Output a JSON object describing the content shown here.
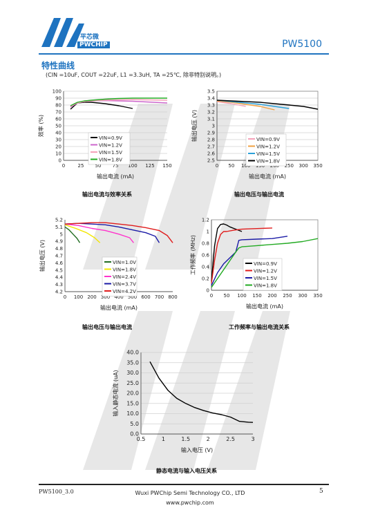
{
  "header": {
    "brand_cn": "平芯微",
    "brand_en": "PWCHIP",
    "part_number": "PW5100"
  },
  "section": {
    "title": "特性曲线",
    "conditions": "(CIN =10uF,  COUT =22uF,  L1 =3.3uH,  TA =25℃,  除非特别说明。)"
  },
  "colors": {
    "brand": "#1e73c0",
    "black": "#000000",
    "violet": "#cc66cc",
    "pink": "#f5a0b8",
    "green": "#22aa22",
    "orange": "#f0a040",
    "cyan": "#2aa0d8",
    "darkgreen": "#1f6b1f",
    "yellow": "#f2e600",
    "magenta": "#ff33cc",
    "navy": "#1a1aa6",
    "red": "#e01b1b"
  },
  "chart_data": [
    {
      "id": "eff",
      "type": "line",
      "title": "",
      "caption": "输出电流与效率关系",
      "xlabel": "输出电流 (mA)",
      "ylabel": "效率 (%)",
      "xlim": [
        0,
        150
      ],
      "ylim": [
        0,
        100
      ],
      "xticks": [
        0,
        25,
        50,
        75,
        100,
        125,
        150
      ],
      "yticks": [
        0,
        10,
        20,
        30,
        40,
        50,
        60,
        70,
        80,
        90,
        100
      ],
      "grid": "horizontal",
      "legend": "inside-lower-right",
      "series": [
        {
          "name": "VIN=0.9V",
          "color": "black",
          "x": [
            10,
            20,
            30,
            40,
            50,
            60,
            70,
            80,
            90,
            100
          ],
          "y": [
            74,
            83,
            84,
            84,
            83,
            82,
            80.5,
            79,
            77,
            75
          ]
        },
        {
          "name": "VIN=1.2V",
          "color": "violet",
          "x": [
            10,
            20,
            30,
            40,
            60,
            80,
            100,
            120,
            150
          ],
          "y": [
            77,
            83,
            85,
            86,
            86.5,
            86,
            85.5,
            84.5,
            83
          ]
        },
        {
          "name": "VIN=1.5V",
          "color": "pink",
          "x": [
            10,
            20,
            30,
            40,
            60,
            80,
            100,
            120,
            150
          ],
          "y": [
            78,
            83,
            85,
            86,
            87,
            87.5,
            88,
            87.5,
            87
          ]
        },
        {
          "name": "VIN=1.8V",
          "color": "green",
          "x": [
            10,
            20,
            30,
            40,
            60,
            80,
            100,
            120,
            150
          ],
          "y": [
            79,
            84,
            86,
            87,
            88.5,
            89.5,
            90,
            90,
            90
          ]
        }
      ]
    },
    {
      "id": "vout1",
      "type": "line",
      "title": "",
      "caption": "输出电压与输出电流",
      "xlabel": "输出电流 (mA)",
      "ylabel": "输出电压 (V)",
      "xlim": [
        0,
        350
      ],
      "ylim": [
        2.5,
        3.5
      ],
      "xticks": [
        0,
        50,
        100,
        150,
        200,
        250,
        300,
        350
      ],
      "yticks": [
        2.5,
        2.6,
        2.7,
        2.8,
        2.9,
        3,
        3.1,
        3.2,
        3.3,
        3.4,
        3.5
      ],
      "grid": "horizontal",
      "legend": "inside-lower-right",
      "series": [
        {
          "name": "VIN=0.9V",
          "color": "pink",
          "x": [
            0,
            50,
            100
          ],
          "y": [
            3.35,
            3.32,
            3.28
          ]
        },
        {
          "name": "VIN=1.2V",
          "color": "orange",
          "x": [
            0,
            50,
            100,
            150,
            200
          ],
          "y": [
            3.36,
            3.34,
            3.31,
            3.28,
            3.23
          ]
        },
        {
          "name": "VIN=1.5V",
          "color": "cyan",
          "x": [
            0,
            50,
            100,
            150,
            200,
            250
          ],
          "y": [
            3.37,
            3.35,
            3.33,
            3.31,
            3.28,
            3.25
          ]
        },
        {
          "name": "VIN=1.8V",
          "color": "black",
          "x": [
            0,
            50,
            100,
            150,
            200,
            250,
            300,
            350
          ],
          "y": [
            3.37,
            3.36,
            3.35,
            3.34,
            3.32,
            3.3,
            3.28,
            3.24
          ]
        }
      ]
    },
    {
      "id": "vout2",
      "type": "line",
      "title": "",
      "caption": "输出电压与输出电流",
      "xlabel": "输出电流 (mA)",
      "ylabel": "输出电压 (V)",
      "xlim": [
        0,
        800
      ],
      "ylim": [
        4.2,
        5.2
      ],
      "xticks": [
        0,
        100,
        200,
        300,
        400,
        500,
        600,
        700,
        800
      ],
      "yticks": [
        4.2,
        4.3,
        4.4,
        4.5,
        4.6,
        4.7,
        4.8,
        4.9,
        5,
        5.1,
        5.2
      ],
      "grid": "none",
      "legend": "inside-lower-right",
      "series": [
        {
          "name": "VIN=1.0V",
          "color": "darkgreen",
          "x": [
            0,
            30,
            60,
            90,
            110
          ],
          "y": [
            5.1,
            5.06,
            5.0,
            4.94,
            4.88
          ]
        },
        {
          "name": "VIN=1.8V",
          "color": "yellow",
          "x": [
            0,
            80,
            160,
            220,
            260
          ],
          "y": [
            5.13,
            5.08,
            5.02,
            4.95,
            4.88
          ]
        },
        {
          "name": "VIN=2.4V",
          "color": "magenta",
          "x": [
            0,
            100,
            200,
            300,
            400,
            480,
            510
          ],
          "y": [
            5.14,
            5.12,
            5.08,
            5.05,
            5.0,
            4.95,
            4.88
          ]
        },
        {
          "name": "VIN=3.7V",
          "color": "navy",
          "x": [
            0,
            100,
            200,
            300,
            400,
            500,
            600,
            670,
            700
          ],
          "y": [
            5.14,
            5.15,
            5.14,
            5.13,
            5.1,
            5.06,
            5.02,
            4.97,
            4.88
          ]
        },
        {
          "name": "VIN=4.2V",
          "color": "red",
          "x": [
            0,
            100,
            200,
            300,
            400,
            500,
            600,
            700,
            760,
            800
          ],
          "y": [
            5.14,
            5.15,
            5.16,
            5.16,
            5.14,
            5.12,
            5.09,
            5.05,
            4.98,
            4.88
          ]
        }
      ]
    },
    {
      "id": "freq",
      "type": "line",
      "title": "",
      "caption": "工作频率与输出电流关系",
      "xlabel": "输出电流 (mA)",
      "ylabel": "工作频率 (MHz)",
      "xlim": [
        0,
        350
      ],
      "ylim": [
        0,
        1.2
      ],
      "xticks": [
        0,
        50,
        100,
        150,
        200,
        250,
        300,
        350
      ],
      "yticks": [
        0,
        0.2,
        0.4,
        0.6,
        0.8,
        1,
        1.2
      ],
      "grid": "none",
      "legend": "inside-lower-right",
      "series": [
        {
          "name": "VIN=0.9V",
          "color": "black",
          "x": [
            0,
            10,
            20,
            30,
            40,
            50,
            60,
            80,
            100
          ],
          "y": [
            0.15,
            0.75,
            1.05,
            1.12,
            1.13,
            1.11,
            1.08,
            1.04,
            1.0
          ]
        },
        {
          "name": "VIN=1.2V",
          "color": "red",
          "x": [
            0,
            10,
            20,
            30,
            40,
            50,
            70,
            100,
            150,
            200
          ],
          "y": [
            0.12,
            0.5,
            0.8,
            0.95,
            1.0,
            1.0,
            1.02,
            1.04,
            1.05,
            1.06
          ]
        },
        {
          "name": "VIN=1.5V",
          "color": "navy",
          "x": [
            0,
            20,
            40,
            60,
            80,
            90,
            100,
            150,
            200,
            250
          ],
          "y": [
            0.08,
            0.3,
            0.45,
            0.55,
            0.65,
            0.85,
            0.86,
            0.87,
            0.88,
            0.92
          ]
        },
        {
          "name": "VIN=1.8V",
          "color": "green",
          "x": [
            0,
            20,
            40,
            60,
            80,
            90,
            100,
            150,
            200,
            250,
            300,
            350
          ],
          "y": [
            0.05,
            0.2,
            0.35,
            0.5,
            0.65,
            0.72,
            0.74,
            0.76,
            0.78,
            0.8,
            0.83,
            0.88
          ]
        }
      ]
    },
    {
      "id": "iq",
      "type": "line",
      "title": "",
      "caption": "静态电流与输入电压关系",
      "xlabel": "输入电压 (V)",
      "ylabel": "输入静态电流 (uA)",
      "xlim": [
        0.5,
        3
      ],
      "ylim": [
        0,
        40
      ],
      "xticks": [
        0.5,
        1,
        1.5,
        2,
        2.5,
        3
      ],
      "yticks": [
        0,
        5,
        10,
        15,
        20,
        25,
        30,
        35,
        40
      ],
      "xtick_labels": [
        "0.5",
        "1",
        "1.5",
        "2",
        "2.5",
        "3"
      ],
      "ytick_labels": [
        "0.0",
        "5.0",
        "10.0",
        "15.0",
        "20.0",
        "25.0",
        "30.0",
        "35.0",
        "40.0"
      ],
      "grid": "horizontal",
      "legend": "none",
      "series": [
        {
          "color": "black",
          "x": [
            0.7,
            0.9,
            1.1,
            1.3,
            1.5,
            1.7,
            1.9,
            2.1,
            2.3,
            2.5,
            2.7,
            2.9,
            3.0
          ],
          "y": [
            35.5,
            27.5,
            21.5,
            17.5,
            15.0,
            13.0,
            11.5,
            10.3,
            9.5,
            8.3,
            6.2,
            5.8,
            5.7
          ]
        }
      ]
    }
  ],
  "footer": {
    "doc_version": "PW5100_3.0",
    "company": "Wuxi PWChip Semi Technology CO., LTD",
    "website": "www.pwchip.com",
    "page_number": "5"
  }
}
